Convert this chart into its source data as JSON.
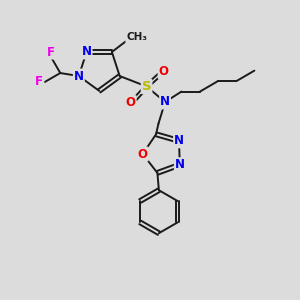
{
  "background_color": "#dcdcdc",
  "bond_color": "#1a1a1a",
  "N_color": "#0000ee",
  "O_color": "#ee0000",
  "F_color": "#ee00ee",
  "S_color": "#bbbb00",
  "figsize": [
    3.0,
    3.0
  ],
  "dpi": 100,
  "xlim": [
    0,
    10
  ],
  "ylim": [
    0,
    10
  ]
}
